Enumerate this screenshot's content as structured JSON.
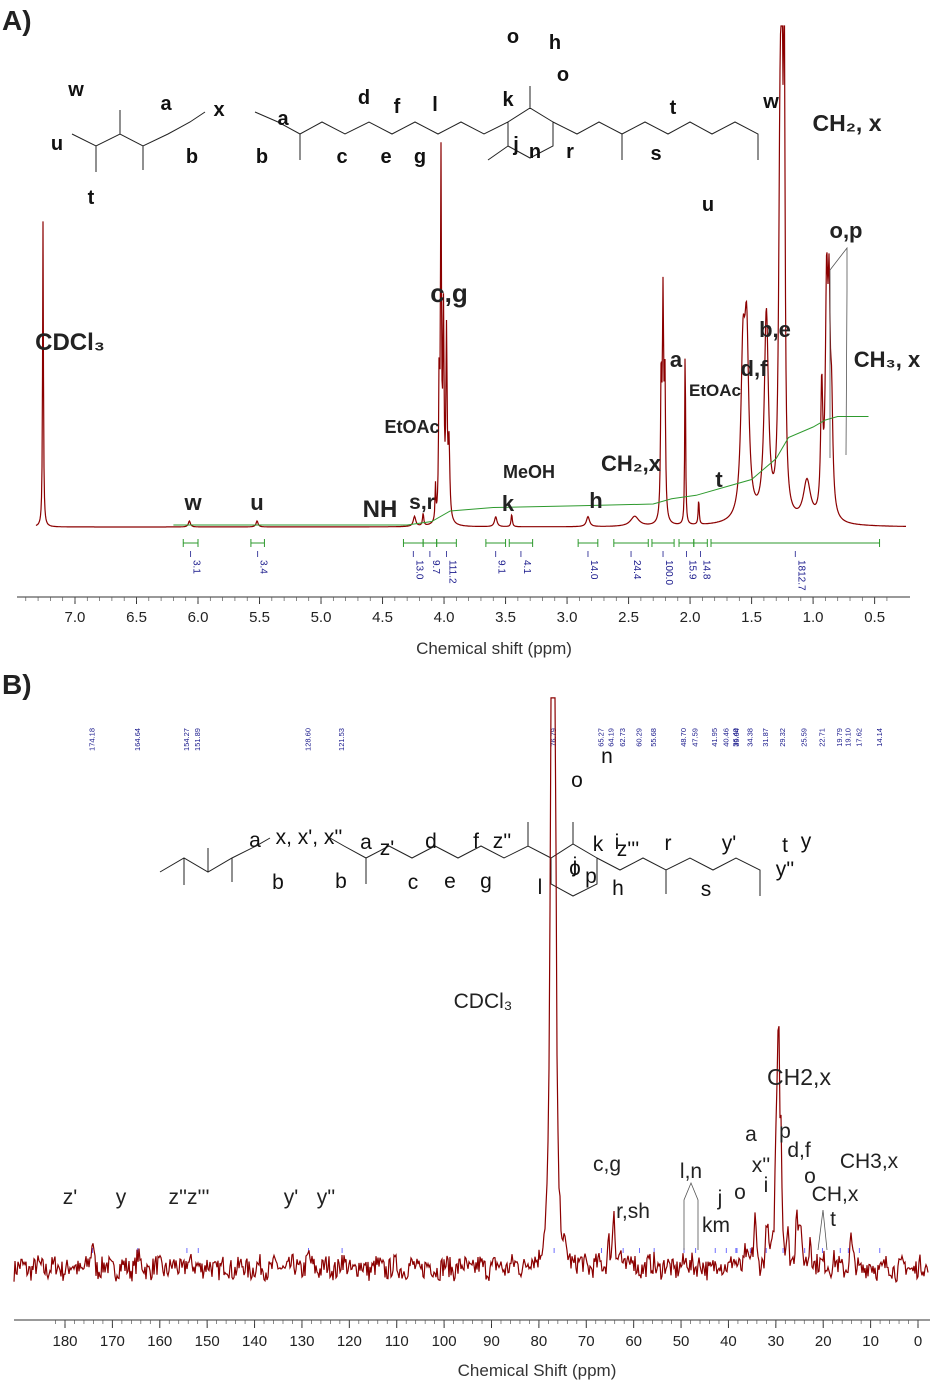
{
  "panels": {
    "A": {
      "label": "A)"
    },
    "B": {
      "label": "B)"
    }
  },
  "chart_data": [
    {
      "type": "line",
      "panel": "A",
      "xlabel": "Chemical shift (ppm)",
      "xlim": [
        7.45,
        0.38
      ],
      "xticks": [
        "7.0",
        "6.5",
        "6.0",
        "5.5",
        "5.0",
        "4.5",
        "4.0",
        "3.5",
        "3.0",
        "2.5",
        "2.0",
        "1.5",
        "1.0",
        "0.5"
      ],
      "line_color": "#8b0000",
      "integral_color": "#2e9a2e",
      "peaks": [
        {
          "label": "CDCl₃",
          "x": 7.26,
          "y": 0.61
        },
        {
          "label": "w",
          "x": 6.07,
          "y": 0.01
        },
        {
          "label": "u",
          "x": 5.52,
          "y": 0.01
        },
        {
          "label": "NH",
          "x": 4.62,
          "y": 0.0
        },
        {
          "label": "s,r",
          "x": 4.25,
          "y": 0.03
        },
        {
          "label": "EtOAc",
          "x": 4.12,
          "y": 0.05
        },
        {
          "label": "c,g",
          "x": 4.02,
          "y": 0.71
        },
        {
          "label": "k",
          "x": 3.58,
          "y": 0.02
        },
        {
          "label": "MeOH",
          "x": 3.45,
          "y": 0.03
        },
        {
          "label": "h",
          "x": 2.83,
          "y": 0.02
        },
        {
          "label": "CH₂,x",
          "x": 2.45,
          "y": 0.02
        },
        {
          "label": "a",
          "x": 2.22,
          "y": 0.42
        },
        {
          "label": "EtOAc",
          "x": 2.04,
          "y": 0.37
        },
        {
          "label": "t",
          "x": 1.93,
          "y": 0.05
        },
        {
          "label": "d,f",
          "x": 1.55,
          "y": 0.44
        },
        {
          "label": "b,e",
          "x": 1.38,
          "y": 0.44
        },
        {
          "label": "CH₂, x",
          "x": 1.25,
          "y": 1.0
        },
        {
          "label": "o,p",
          "x": 1.05,
          "y": 0.07
        },
        {
          "label": "CH₃, x",
          "x": 0.88,
          "y": 0.47
        }
      ],
      "integrals": [
        {
          "from": 6.12,
          "to": 6.0,
          "value": "3.1"
        },
        {
          "from": 5.57,
          "to": 5.46,
          "value": "3.4"
        },
        {
          "from": 4.33,
          "to": 4.17,
          "value": "13.0"
        },
        {
          "from": 4.17,
          "to": 4.06,
          "value": "9.7"
        },
        {
          "from": 4.06,
          "to": 3.9,
          "value": "111.2"
        },
        {
          "from": 3.66,
          "to": 3.5,
          "value": "9.1"
        },
        {
          "from": 3.47,
          "to": 3.28,
          "value": "4.1"
        },
        {
          "from": 2.91,
          "to": 2.75,
          "value": "14.0"
        },
        {
          "from": 2.62,
          "to": 2.34,
          "value": "24.4"
        },
        {
          "from": 2.31,
          "to": 2.13,
          "value": "100.0"
        },
        {
          "from": 2.09,
          "to": 1.97,
          "value": "15.9"
        },
        {
          "from": 1.97,
          "to": 1.86,
          "value": "14.8"
        },
        {
          "from": 1.83,
          "to": 0.46,
          "value": "1812.7"
        }
      ],
      "annotations": [
        "w",
        "u",
        "NH",
        "s,r",
        "EtOAc",
        "c,g",
        "k",
        "MeOH",
        "h",
        "CH₂,x",
        "a",
        "EtOAc",
        "t",
        "d,f",
        "b,e",
        "CH₂, x",
        "o,p",
        "CH₃, x",
        "CDCl₃"
      ],
      "structure_labels": [
        "u",
        "w",
        "t",
        "a",
        "b",
        "x",
        "a",
        "b",
        "c",
        "d",
        "e",
        "f",
        "g",
        "l",
        "k",
        "j",
        "n",
        "o",
        "o",
        "h",
        "r",
        "s",
        "t",
        "w",
        "u"
      ]
    },
    {
      "type": "line",
      "panel": "B",
      "xlabel": "Chemical Shift (ppm)",
      "xlim": [
        184.5,
        -1
      ],
      "xticks": [
        "180",
        "170",
        "160",
        "150",
        "140",
        "130",
        "120",
        "110",
        "100",
        "90",
        "80",
        "70",
        "60",
        "50",
        "40",
        "30",
        "20",
        "10",
        "0"
      ],
      "line_color": "#8b0000",
      "peak_shift_labels": [
        "174.18",
        "164.64",
        "154.27",
        "151.89",
        "128.60",
        "121.53",
        "76.79",
        "65.27",
        "64.19",
        "62.73",
        "60.29",
        "55.68",
        "48.70",
        "47.59",
        "41.95",
        "40.46",
        "39.04",
        "36.40",
        "34.38",
        "31.87",
        "29.32",
        "25.59",
        "22.71",
        "19.79",
        "19.10",
        "17.62",
        "14.14"
      ],
      "peaks": [
        {
          "label": "z'",
          "x": 174.18,
          "y": 0.06
        },
        {
          "label": "y",
          "x": 164.64,
          "y": 0.02
        },
        {
          "label": "z''z'''",
          "x": 154.27,
          "y": 0.01
        },
        {
          "label": "y'",
          "x": 128.6,
          "y": 0.02
        },
        {
          "label": "y''",
          "x": 121.53,
          "y": 0.01
        },
        {
          "label": "CDCl₃",
          "x": 77.0,
          "y": 1.0
        },
        {
          "label": "c,g",
          "x": 64.19,
          "y": 0.1
        },
        {
          "label": "r,sh",
          "x": 62.73,
          "y": 0.03
        },
        {
          "label": "l,n",
          "x": 48.0,
          "y": 0.0
        },
        {
          "label": "j",
          "x": 41.95,
          "y": 0.0
        },
        {
          "label": "km",
          "x": 40.46,
          "y": 0.0
        },
        {
          "label": "o",
          "x": 36.4,
          "y": 0.02
        },
        {
          "label": "a",
          "x": 34.38,
          "y": 0.1
        },
        {
          "label": "x''",
          "x": 31.87,
          "y": 0.08
        },
        {
          "label": "i",
          "x": 31.87,
          "y": 0.04
        },
        {
          "label": "CH2,x",
          "x": 29.32,
          "y": 0.24
        },
        {
          "label": "p",
          "x": 28.5,
          "y": 0.22
        },
        {
          "label": "d,f",
          "x": 25.59,
          "y": 0.12
        },
        {
          "label": "o",
          "x": 22.71,
          "y": 0.07
        },
        {
          "label": "CH,x",
          "x": 19.5,
          "y": 0.01
        },
        {
          "label": "t",
          "x": 17.62,
          "y": 0.0
        },
        {
          "label": "CH3,x",
          "x": 14.14,
          "y": 0.05
        }
      ],
      "annotations": [
        "z'",
        "y",
        "z''z'''",
        "y'",
        "y''",
        "CDCl₃",
        "c,g",
        "r,sh",
        "l,n",
        "j",
        "km",
        "o",
        "a",
        "x''",
        "i",
        "CH2,x",
        "p",
        "d,f",
        "o",
        "CH,x",
        "t",
        "CH3,x"
      ],
      "structure_labels": [
        "a",
        "x, x', x''",
        "b",
        "a",
        "z'",
        "b",
        "c",
        "d",
        "e",
        "f",
        "g",
        "z''",
        "l",
        "o",
        "o",
        "n",
        "i",
        "k",
        "j",
        "p",
        "h",
        "z'''",
        "r",
        "s",
        "y'",
        "t",
        "y",
        "y''"
      ]
    }
  ]
}
